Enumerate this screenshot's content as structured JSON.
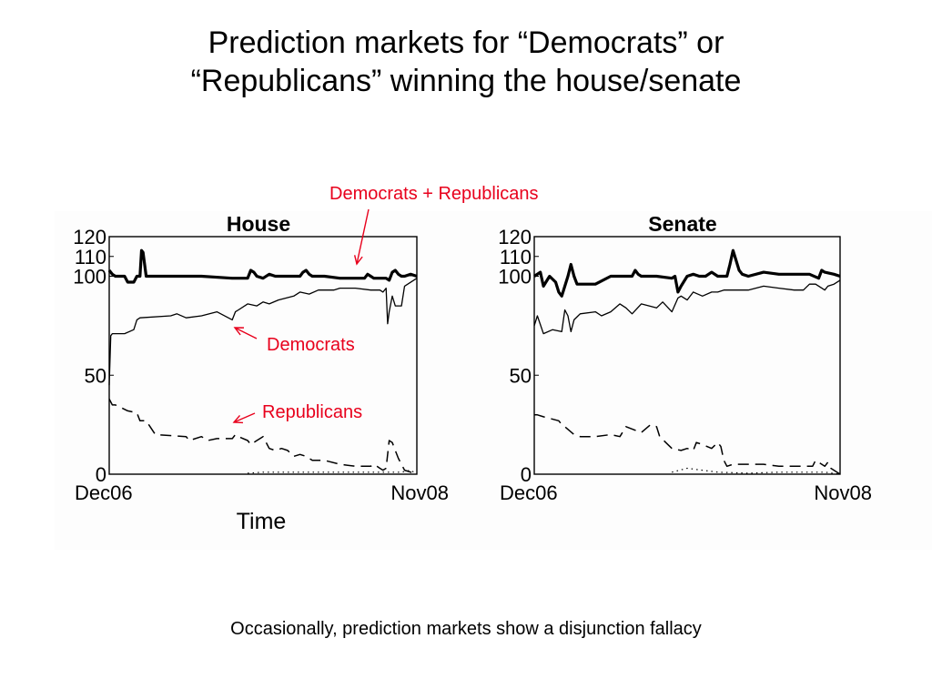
{
  "slide": {
    "title_line1": "Prediction markets for “Democrats” or",
    "title_line2": "“Republicans” winning the house/senate",
    "caption": "Occasionally, prediction markets show a disjunction fallacy"
  },
  "annotations": {
    "sum": "Democrats + Republicans",
    "democrats": "Democrats",
    "republicans": "Republicans",
    "color": "#e8001c"
  },
  "chart_data": [
    {
      "type": "line",
      "title": "House",
      "xlabel": "Time",
      "x_tick_labels": [
        "Dec06",
        "Nov08"
      ],
      "y_ticks": [
        0,
        50,
        100,
        110,
        120
      ],
      "ylim": [
        0,
        120
      ],
      "xlim": [
        0,
        100
      ],
      "grid": false,
      "series": [
        {
          "style": "thick",
          "x": [
            0,
            1,
            2,
            5,
            6,
            8,
            9,
            10,
            10.5,
            11,
            12,
            20,
            30,
            40,
            45,
            46,
            47,
            48,
            50,
            52,
            54,
            56,
            60,
            62,
            63,
            64,
            65,
            66,
            70,
            75,
            80,
            83,
            84,
            85,
            86,
            90,
            91,
            92,
            93,
            94,
            95,
            96,
            98,
            100
          ],
          "y": [
            103,
            101,
            100,
            100,
            97,
            97,
            100,
            100,
            113,
            112,
            100,
            100,
            100,
            99,
            99,
            103,
            102,
            100,
            99,
            101,
            100,
            100,
            100,
            100,
            102,
            103,
            101,
            100,
            100,
            99,
            99,
            99,
            101,
            100,
            99,
            99,
            98,
            102,
            103,
            101,
            100,
            100,
            101,
            100
          ]
        },
        {
          "style": "thin",
          "x": [
            0,
            0.5,
            1,
            5,
            8,
            9,
            10,
            20,
            22,
            25,
            30,
            35,
            40,
            41,
            42,
            45,
            48,
            50,
            52,
            55,
            60,
            62,
            65,
            68,
            70,
            73,
            75,
            80,
            85,
            88,
            89,
            90,
            90.5,
            91,
            92,
            93,
            95,
            96,
            100
          ],
          "y": [
            45,
            70,
            71,
            71,
            73,
            78,
            79,
            80,
            81,
            79,
            80,
            82,
            78,
            82,
            83,
            86,
            85,
            87,
            86,
            88,
            90,
            92,
            91,
            93,
            93,
            93,
            94,
            94,
            93,
            93,
            92,
            94,
            76,
            82,
            90,
            85,
            85,
            95,
            99
          ]
        },
        {
          "style": "dashed",
          "x": [
            0,
            1,
            2,
            6,
            9,
            10,
            12,
            15,
            25,
            26,
            30,
            32,
            35,
            40,
            41,
            42,
            45,
            46,
            48,
            50,
            52,
            54,
            56,
            58,
            60,
            62,
            64,
            66,
            70,
            75,
            80,
            85,
            86,
            87,
            88,
            89,
            90,
            91,
            92,
            93,
            94,
            95,
            96,
            100
          ],
          "y": [
            38,
            35,
            35,
            32,
            31,
            27,
            27,
            20,
            19,
            17,
            19,
            17,
            18,
            18,
            20,
            19,
            17,
            15,
            17,
            19,
            13,
            12,
            13,
            12,
            9,
            10,
            9,
            7,
            7,
            5,
            4,
            4,
            5,
            4,
            3,
            2,
            3,
            17,
            16,
            12,
            8,
            5,
            2,
            0
          ]
        },
        {
          "style": "dotted",
          "x": [
            45,
            50,
            60,
            70,
            80,
            90,
            95,
            98,
            100
          ],
          "y": [
            0.5,
            1,
            1,
            1,
            1,
            1,
            1,
            2,
            0
          ]
        }
      ]
    },
    {
      "type": "line",
      "title": "Senate",
      "x_tick_labels": [
        "Dec06",
        "Nov08"
      ],
      "y_ticks": [
        0,
        50,
        100,
        110,
        120
      ],
      "ylim": [
        0,
        120
      ],
      "xlim": [
        0,
        100
      ],
      "grid": false,
      "series": [
        {
          "style": "thick",
          "x": [
            0,
            2,
            3,
            5,
            7,
            8,
            9,
            10,
            11,
            12,
            13,
            14,
            20,
            25,
            30,
            32,
            33,
            34,
            35,
            36,
            40,
            45,
            46,
            47,
            48,
            50,
            52,
            54,
            56,
            58,
            60,
            63,
            64,
            65,
            67,
            68,
            70,
            75,
            80,
            85,
            90,
            93,
            94,
            95,
            98,
            100
          ],
          "y": [
            100,
            102,
            95,
            100,
            97,
            92,
            90,
            95,
            100,
            106,
            100,
            96,
            96,
            100,
            100,
            100,
            103,
            101,
            100,
            100,
            100,
            99,
            100,
            92,
            95,
            100,
            101,
            100,
            100,
            102,
            100,
            100,
            106,
            113,
            103,
            101,
            100,
            102,
            101,
            101,
            101,
            99,
            103,
            102,
            101,
            100
          ]
        },
        {
          "style": "thin",
          "x": [
            0,
            1,
            3,
            6,
            9,
            10,
            11,
            12,
            13,
            15,
            20,
            22,
            25,
            28,
            30,
            32,
            35,
            40,
            42,
            45,
            47,
            48,
            50,
            52,
            55,
            58,
            60,
            62,
            65,
            70,
            75,
            80,
            85,
            88,
            90,
            92,
            95,
            96,
            98,
            100
          ],
          "y": [
            75,
            80,
            71,
            73,
            72,
            83,
            80,
            72,
            78,
            81,
            82,
            80,
            82,
            86,
            84,
            81,
            86,
            84,
            87,
            82,
            89,
            90,
            88,
            92,
            90,
            92,
            92,
            93,
            93,
            93,
            95,
            94,
            93,
            93,
            96,
            96,
            93,
            95,
            96,
            98
          ]
        },
        {
          "style": "dashed",
          "x": [
            0,
            1,
            3,
            8,
            9,
            10,
            13,
            15,
            20,
            25,
            28,
            30,
            35,
            38,
            40,
            41,
            43,
            45,
            48,
            50,
            52,
            53,
            55,
            58,
            60,
            61,
            62,
            63,
            65,
            70,
            75,
            80,
            85,
            90,
            91,
            92,
            95,
            96,
            97,
            100
          ],
          "y": [
            30,
            30,
            29,
            27,
            25,
            24,
            20,
            19,
            19,
            20,
            19,
            24,
            21,
            25,
            24,
            19,
            16,
            13,
            12,
            13,
            12,
            16,
            15,
            13,
            16,
            14,
            7,
            4,
            5,
            5,
            5,
            4,
            4,
            4,
            4,
            7,
            4,
            6,
            3,
            0
          ]
        },
        {
          "style": "dotted",
          "x": [
            45,
            50,
            60,
            70,
            80,
            90,
            95,
            100
          ],
          "y": [
            1,
            3,
            1,
            0.5,
            1,
            1,
            1,
            0
          ]
        }
      ]
    }
  ]
}
